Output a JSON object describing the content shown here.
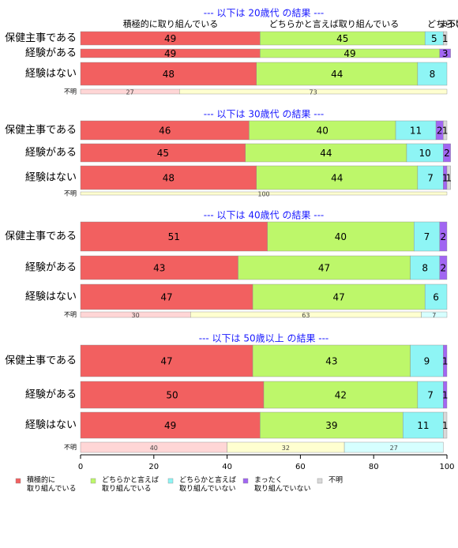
{
  "chart_data": {
    "type": "bar",
    "orientation": "horizontal",
    "stacked": true,
    "xlim": [
      0,
      100
    ],
    "xticks": [
      "0",
      "20",
      "40",
      "60",
      "80",
      "100"
    ],
    "legend_position": "bottom",
    "categories": [
      {
        "label": "積極的に\n取り組んでいる",
        "color": "#f26060"
      },
      {
        "label": "どちらかと言えば\n取り組んでいる",
        "color": "#bdf76a"
      },
      {
        "label": "どちらかと言えば\n取り組んでいない",
        "color": "#8ef5f5"
      },
      {
        "label": "まったく\n取り組んでいない",
        "color": "#a166f2"
      },
      {
        "label": "不明",
        "color": "#d9d9d9"
      }
    ],
    "column_headers": [
      "積極的に取り組んでいる",
      "どちらかと言えば取り組んでいる",
      "どちら",
      "まったく",
      "不明"
    ],
    "panels": [
      {
        "title": "--- 以下は 20歳代 の結果 ---",
        "rows": [
          {
            "label": "保健主事である",
            "values": [
              49,
              45,
              5,
              0,
              1
            ]
          },
          {
            "label": "経験がある",
            "values": [
              49,
              49,
              0,
              3,
              0
            ]
          },
          {
            "label": "経験はない",
            "values": [
              48,
              44,
              8,
              0,
              0
            ]
          }
        ],
        "unknown_row": {
          "label": "不明",
          "values": [
            27,
            73,
            0
          ]
        }
      },
      {
        "title": "--- 以下は 30歳代 の結果 ---",
        "rows": [
          {
            "label": "保健主事である",
            "values": [
              46,
              40,
              11,
              2,
              1
            ]
          },
          {
            "label": "経験がある",
            "values": [
              45,
              44,
              10,
              2,
              0
            ]
          },
          {
            "label": "経験はない",
            "values": [
              48,
              44,
              7,
              1,
              1
            ]
          }
        ],
        "unknown_row": {
          "label": "不明",
          "values": [
            0,
            100,
            0
          ]
        }
      },
      {
        "title": "--- 以下は 40歳代 の結果 ---",
        "rows": [
          {
            "label": "保健主事である",
            "values": [
              51,
              40,
              7,
              2,
              0
            ]
          },
          {
            "label": "経験がある",
            "values": [
              43,
              47,
              8,
              2,
              0
            ]
          },
          {
            "label": "経験はない",
            "values": [
              47,
              47,
              6,
              0,
              0
            ]
          }
        ],
        "unknown_row": {
          "label": "不明",
          "values": [
            30,
            63,
            7
          ]
        }
      },
      {
        "title": "--- 以下は 50歳以上 の結果 ---",
        "rows": [
          {
            "label": "保健主事である",
            "values": [
              47,
              43,
              9,
              1,
              0
            ]
          },
          {
            "label": "経験がある",
            "values": [
              50,
              42,
              7,
              1,
              0
            ]
          },
          {
            "label": "経験はない",
            "values": [
              49,
              39,
              11,
              0,
              1
            ]
          }
        ],
        "unknown_row": {
          "label": "不明",
          "values": [
            40,
            32,
            27
          ]
        }
      }
    ]
  }
}
